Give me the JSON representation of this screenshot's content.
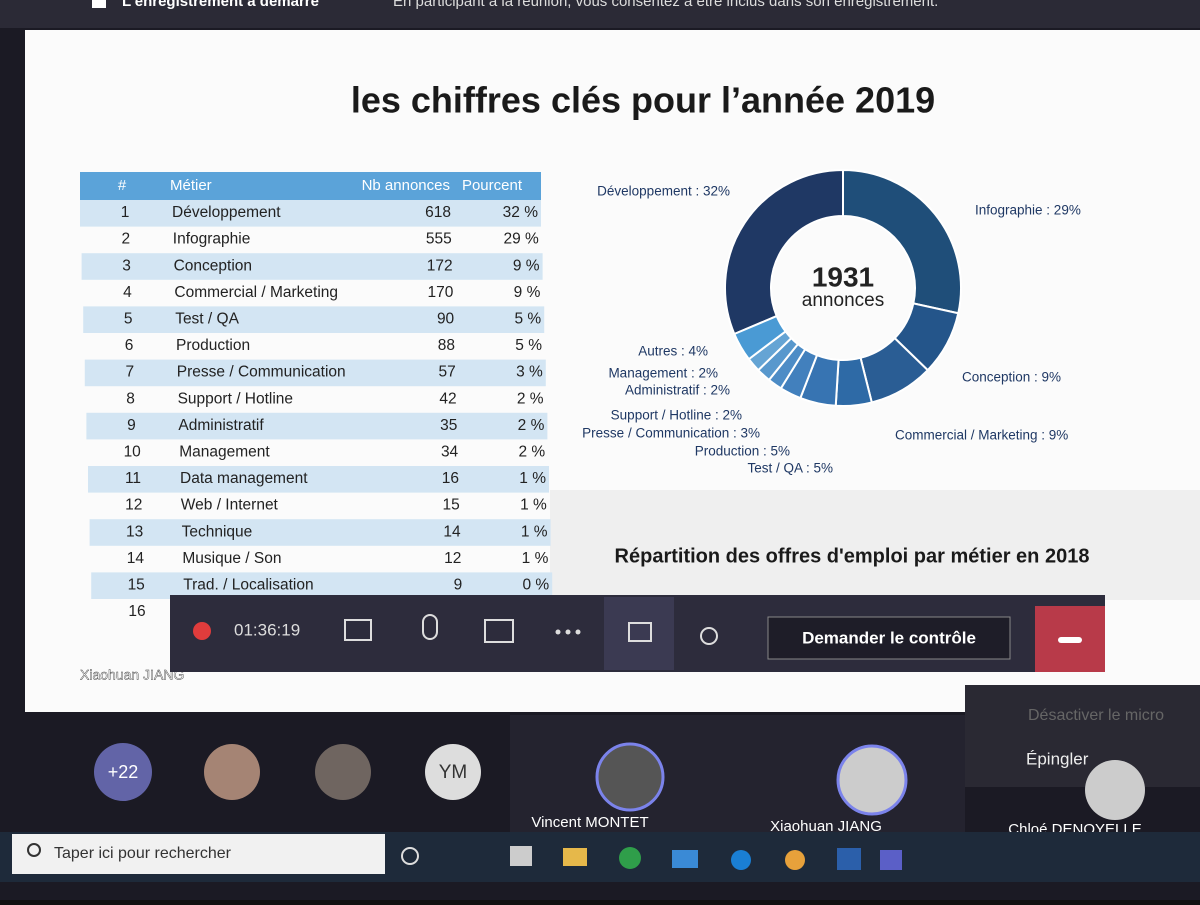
{
  "banner": {
    "title": "L'enregistrement a démarré",
    "text": "En participant à la réunion, vous consentez à être inclus dans son enregistrement."
  },
  "slide": {
    "title": "les chiffres clés pour l’année 2019",
    "subtitle": "Répartition des offres d'emploi par métier en 2018",
    "presenter": "Xiaohuan JIANG",
    "table": {
      "header": [
        "#",
        "Métier",
        "Nb annonces",
        "Pourcent"
      ],
      "rows": [
        [
          1,
          "Développement",
          618,
          "32 %"
        ],
        [
          2,
          "Infographie",
          555,
          "29 %"
        ],
        [
          3,
          "Conception",
          172,
          "9 %"
        ],
        [
          4,
          "Commercial / Marketing",
          170,
          "9 %"
        ],
        [
          5,
          "Test / QA",
          90,
          "5 %"
        ],
        [
          6,
          "Production",
          88,
          "5 %"
        ],
        [
          7,
          "Presse / Communication",
          57,
          "3 %"
        ],
        [
          8,
          "Support / Hotline",
          42,
          "2 %"
        ],
        [
          9,
          "Administratif",
          35,
          "2 %"
        ],
        [
          10,
          "Management",
          34,
          "2 %"
        ],
        [
          11,
          "Data management",
          16,
          "1 %"
        ],
        [
          12,
          "Web / Internet",
          15,
          "1 %"
        ],
        [
          13,
          "Technique",
          14,
          "1 %"
        ],
        [
          14,
          "Musique / Son",
          12,
          "1 %"
        ],
        [
          15,
          "Trad. / Localisation",
          9,
          "0 %"
        ],
        [
          16
        ]
      ]
    }
  },
  "chart_data": {
    "type": "donut",
    "center_value": 1931,
    "center_label": "annonces",
    "categories": [
      "Développement",
      "Infographie",
      "Conception",
      "Commercial / Marketing",
      "Test / QA",
      "Production",
      "Presse / Communication",
      "Support / Hotline",
      "Administratif",
      "Management",
      "Autres"
    ],
    "values": [
      32,
      29,
      9,
      9,
      5,
      5,
      3,
      2,
      2,
      2,
      4
    ],
    "value_labels": [
      "Développement : 32%",
      "Infographie : 29%",
      "Conception : 9%",
      "Commercial / Marketing : 9%",
      "Test / QA : 5%",
      "Production : 5%",
      "Presse / Communication : 3%",
      "Support / Hotline : 2%",
      "Administratif : 2%",
      "Management : 2%",
      "Autres : 4%"
    ],
    "colors": [
      "#1f3864",
      "#1f4e79",
      "#24558a",
      "#2a5d94",
      "#2e6aa6",
      "#3774b2",
      "#4280bd",
      "#4d8cc6",
      "#5898cd",
      "#65a4d4",
      "#4a9ad4"
    ]
  },
  "toolbar": {
    "timer": "01:36:19",
    "control_button": "Demander le contrôle"
  },
  "menu": {
    "items": [
      "Désactiver le micro",
      "Épingler"
    ]
  },
  "participants": {
    "overflow": "+22",
    "initials": "YM",
    "videos": [
      "Vincent MONTET",
      "Xiaohuan JIANG",
      "Chloé DENOYELLE"
    ]
  },
  "taskbar": {
    "search": "Taper ici pour rechercher"
  }
}
